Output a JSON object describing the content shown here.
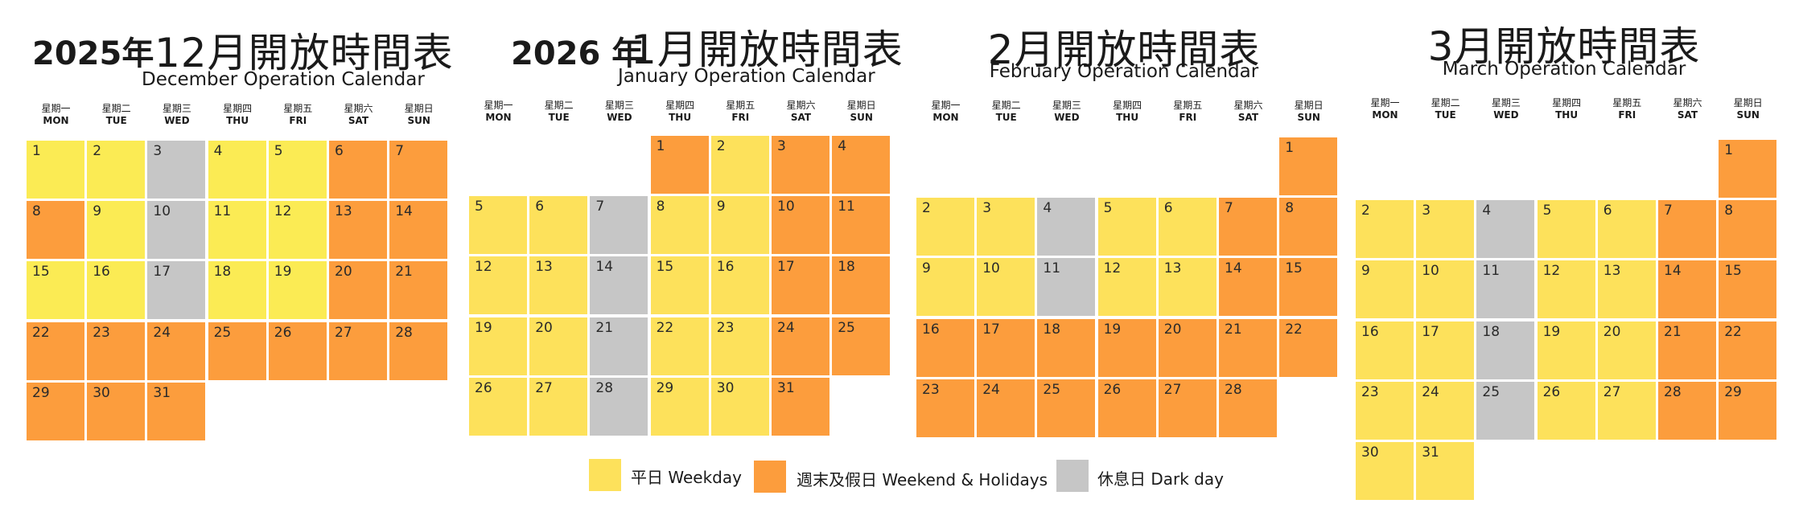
{
  "colors": {
    "weekday": "#fde15b",
    "weekday_dec": "#fbeb54",
    "weekend": "#fc9d3d",
    "dark": "#c6c6c6"
  },
  "months": [
    {
      "year": "2025年",
      "title": "12月開放時間表",
      "subtitle": "December Operation Calendar",
      "weekday_headers": [
        {
          "zh": "星期一",
          "en": "MON"
        },
        {
          "zh": "星期二",
          "en": "TUE"
        },
        {
          "zh": "星期三",
          "en": "WED"
        },
        {
          "zh": "星期四",
          "en": "THU"
        },
        {
          "zh": "星期五",
          "en": "FRI"
        },
        {
          "zh": "星期六",
          "en": "SAT"
        },
        {
          "zh": "星期日",
          "en": "SUN"
        }
      ],
      "start_weekday": 0,
      "days": [
        "w",
        "w",
        "d",
        "w",
        "w",
        "h",
        "h",
        "h",
        "w",
        "d",
        "w",
        "w",
        "h",
        "h",
        "w",
        "w",
        "d",
        "w",
        "w",
        "h",
        "h",
        "h",
        "h",
        "h",
        "h",
        "h",
        "h",
        "h",
        "h",
        "h",
        "h"
      ]
    },
    {
      "year": "2026 年",
      "title": "1月開放時間表",
      "subtitle": "January Operation Calendar",
      "weekday_headers": [
        {
          "zh": "星期一",
          "en": "MON"
        },
        {
          "zh": "星期二",
          "en": "TUE"
        },
        {
          "zh": "星期三",
          "en": "WED"
        },
        {
          "zh": "星期四",
          "en": "THU"
        },
        {
          "zh": "星期五",
          "en": "FRI"
        },
        {
          "zh": "星期六",
          "en": "SAT"
        },
        {
          "zh": "星期日",
          "en": "SUN"
        }
      ],
      "start_weekday": 3,
      "days": [
        "h",
        "w",
        "h",
        "h",
        "w",
        "w",
        "d",
        "w",
        "w",
        "h",
        "h",
        "w",
        "w",
        "d",
        "w",
        "w",
        "h",
        "h",
        "w",
        "w",
        "d",
        "w",
        "w",
        "h",
        "h",
        "w",
        "w",
        "d",
        "w",
        "w",
        "h"
      ]
    },
    {
      "year": "",
      "title": "2月開放時間表",
      "subtitle": "February Operation Calendar",
      "weekday_headers": [
        {
          "zh": "星期一",
          "en": "MON"
        },
        {
          "zh": "星期二",
          "en": "TUE"
        },
        {
          "zh": "星期三",
          "en": "WED"
        },
        {
          "zh": "星期四",
          "en": "THU"
        },
        {
          "zh": "星期五",
          "en": "FRI"
        },
        {
          "zh": "星期六",
          "en": "SAT"
        },
        {
          "zh": "星期日",
          "en": "SUN"
        }
      ],
      "start_weekday": 6,
      "days": [
        "h",
        "w",
        "w",
        "d",
        "w",
        "w",
        "h",
        "h",
        "w",
        "w",
        "d",
        "w",
        "w",
        "h",
        "h",
        "h",
        "h",
        "h",
        "h",
        "h",
        "h",
        "h",
        "h",
        "h",
        "h",
        "h",
        "h",
        "h"
      ]
    },
    {
      "year": "",
      "title": "3月開放時間表",
      "subtitle": "March Operation Calendar",
      "weekday_headers": [
        {
          "zh": "星期一",
          "en": "MON"
        },
        {
          "zh": "星期二",
          "en": "TUE"
        },
        {
          "zh": "星期三",
          "en": "WED"
        },
        {
          "zh": "星期四",
          "en": "THU"
        },
        {
          "zh": "星期五",
          "en": "FRI"
        },
        {
          "zh": "星期六",
          "en": "SAT"
        },
        {
          "zh": "星期日",
          "en": "SUN"
        }
      ],
      "start_weekday": 6,
      "days": [
        "h",
        "w",
        "w",
        "d",
        "w",
        "w",
        "h",
        "h",
        "w",
        "w",
        "d",
        "w",
        "w",
        "h",
        "h",
        "w",
        "w",
        "d",
        "w",
        "w",
        "h",
        "h",
        "w",
        "w",
        "d",
        "w",
        "w",
        "h",
        "h",
        "w",
        "w"
      ]
    }
  ],
  "legend": [
    {
      "label": "平日 Weekday",
      "type": "w"
    },
    {
      "label": "週末及假日 Weekend & Holidays",
      "type": "h"
    },
    {
      "label": "休息日 Dark day",
      "type": "d"
    }
  ]
}
